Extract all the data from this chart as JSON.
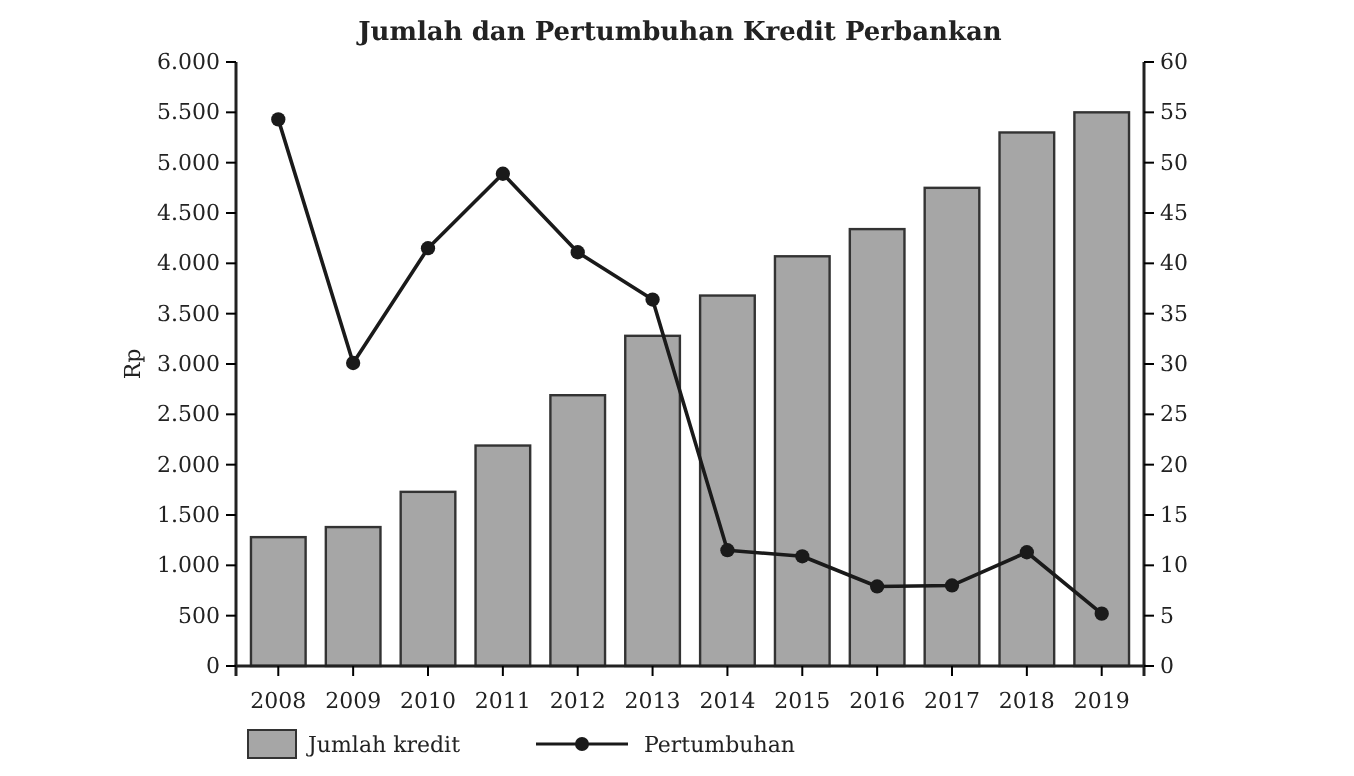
{
  "chart_data": {
    "type": "bar",
    "title": "Jumlah dan Pertumbuhan Kredit Perbankan",
    "ylabel": "Rp",
    "categories": [
      "2008",
      "2009",
      "2010",
      "2011",
      "2012",
      "2013",
      "2014",
      "2015",
      "2016",
      "2017",
      "2018",
      "2019"
    ],
    "series": [
      {
        "name": "Jumlah kredit",
        "color": "#a6a6a6",
        "values": [
          1280,
          1380,
          1730,
          2190,
          2690,
          3280,
          3680,
          4070,
          4340,
          4750,
          5300,
          5500
        ]
      },
      {
        "name": "Pertumbuhan",
        "type": "line",
        "axis": "y2",
        "color": "#1a1a1a",
        "values": [
          54.3,
          30.1,
          41.5,
          48.9,
          41.1,
          36.4,
          11.5,
          10.9,
          7.9,
          8.0,
          11.3,
          5.2
        ]
      }
    ],
    "ylim": [
      0,
      6000
    ],
    "yticks": [
      0,
      500,
      {
        "value": 1000,
        "label": "1.000"
      },
      {
        "value": 1500,
        "label": "1.500"
      },
      {
        "value": 2000,
        "label": "2.000"
      },
      {
        "value": 2500,
        "label": "2.500"
      },
      {
        "value": 3000,
        "label": "3.000"
      },
      {
        "value": 3500,
        "label": "3.500"
      },
      {
        "value": 4000,
        "label": "4.000"
      },
      {
        "value": 4500,
        "label": "4.500"
      },
      {
        "value": 5000,
        "label": "5.000"
      },
      {
        "value": 5500,
        "label": "5.500"
      },
      {
        "value": 6000,
        "label": "6.000"
      }
    ],
    "y2lim": [
      0,
      60
    ],
    "y2ticks": [
      0,
      5,
      10,
      15,
      20,
      25,
      30,
      35,
      40,
      45,
      50,
      55,
      60
    ],
    "marker": "circle",
    "line_style": "solid",
    "legend": "bottom",
    "grid": false
  }
}
